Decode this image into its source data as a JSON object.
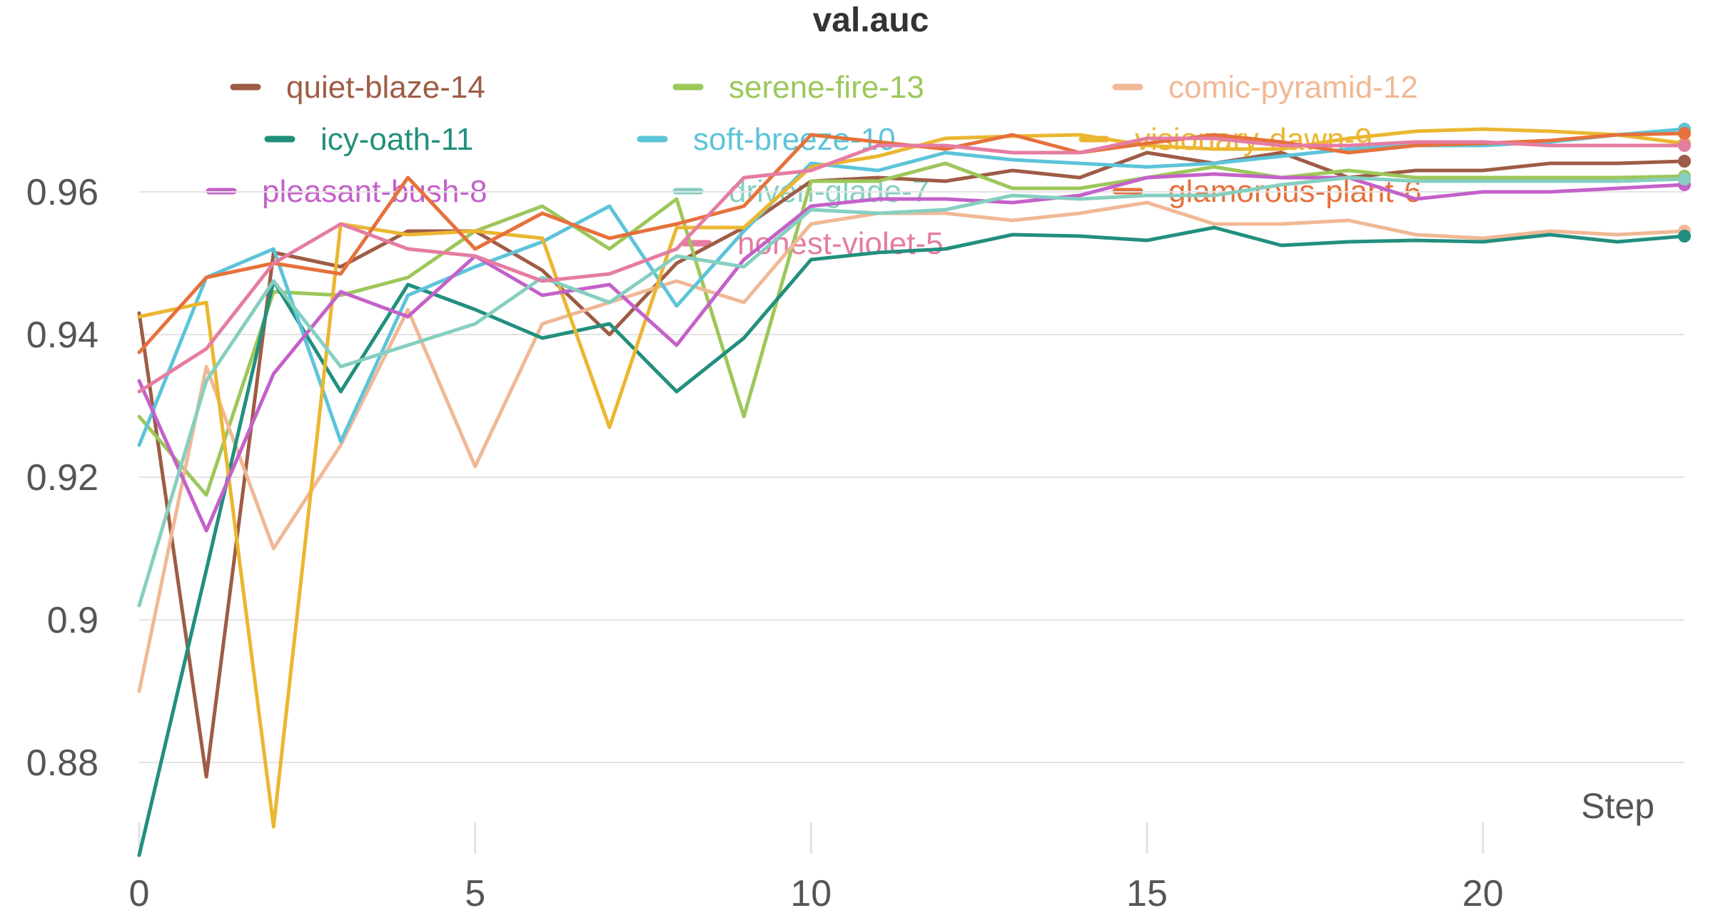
{
  "chart_data": {
    "type": "line",
    "title": "val.auc",
    "xlabel": "Step",
    "ylabel": "",
    "xlim": [
      0,
      23
    ],
    "ylim": [
      0.87,
      0.97
    ],
    "x_ticks": [
      0,
      5,
      10,
      15,
      20
    ],
    "x_tick_labels": [
      "0",
      "5",
      "10",
      "15",
      "20"
    ],
    "y_ticks": [
      0.88,
      0.9,
      0.92,
      0.94,
      0.96
    ],
    "y_tick_labels": [
      "0.88",
      "0.9",
      "0.92",
      "0.94",
      "0.96"
    ],
    "grid": true,
    "legend_position": "top",
    "x": [
      0,
      1,
      2,
      3,
      4,
      5,
      6,
      7,
      8,
      9,
      10,
      11,
      12,
      13,
      14,
      15,
      16,
      17,
      18,
      19,
      20,
      21,
      22,
      23
    ],
    "series": [
      {
        "name": "quiet-blaze-14",
        "color": "#9e5c45",
        "values": [
          0.943,
          0.878,
          0.9515,
          0.9495,
          0.9545,
          0.9545,
          0.949,
          0.94,
          0.95,
          0.955,
          0.9615,
          0.962,
          0.9615,
          0.963,
          0.962,
          0.9655,
          0.964,
          0.9655,
          0.962,
          0.963,
          0.963,
          0.964,
          0.964,
          0.9643
        ]
      },
      {
        "name": "serene-fire-13",
        "color": "#9cc75a",
        "values": [
          0.9285,
          0.9175,
          0.946,
          0.9455,
          0.948,
          0.9545,
          0.958,
          0.952,
          0.959,
          0.9285,
          0.9615,
          0.9615,
          0.964,
          0.9605,
          0.9605,
          0.962,
          0.9635,
          0.962,
          0.963,
          0.962,
          0.962,
          0.962,
          0.962,
          0.9622
        ]
      },
      {
        "name": "comic-pyramid-12",
        "color": "#f0b895",
        "values": [
          0.89,
          0.9355,
          0.91,
          0.9245,
          0.9435,
          0.9215,
          0.9415,
          0.9445,
          0.9475,
          0.9445,
          0.9555,
          0.957,
          0.957,
          0.956,
          0.957,
          0.9585,
          0.9555,
          0.9555,
          0.956,
          0.954,
          0.9535,
          0.9545,
          0.954,
          0.9545
        ]
      },
      {
        "name": "icy-oath-11",
        "color": "#228f7e",
        "values": [
          0.867,
          0.907,
          0.9475,
          0.932,
          0.947,
          0.9435,
          0.9395,
          0.9415,
          0.932,
          0.9395,
          0.9505,
          0.9515,
          0.952,
          0.954,
          0.9538,
          0.9532,
          0.955,
          0.9525,
          0.953,
          0.9532,
          0.953,
          0.954,
          0.953,
          0.9538
        ]
      },
      {
        "name": "soft-breeze-10",
        "color": "#5cc4d9",
        "values": [
          0.9245,
          0.948,
          0.952,
          0.925,
          0.9455,
          0.9495,
          0.953,
          0.958,
          0.944,
          0.9545,
          0.964,
          0.963,
          0.9655,
          0.9645,
          0.964,
          0.9635,
          0.964,
          0.965,
          0.966,
          0.9665,
          0.9665,
          0.967,
          0.968,
          0.9688
        ]
      },
      {
        "name": "visionary-dawn-9",
        "color": "#ebb630",
        "values": [
          0.9425,
          0.9445,
          0.871,
          0.9555,
          0.954,
          0.9545,
          0.9535,
          0.927,
          0.955,
          0.955,
          0.9635,
          0.965,
          0.9675,
          0.9678,
          0.968,
          0.9665,
          0.966,
          0.966,
          0.9675,
          0.9685,
          0.9688,
          0.9685,
          0.968,
          0.9668
        ]
      },
      {
        "name": "pleasant-bush-8",
        "color": "#c461c9",
        "values": [
          0.9335,
          0.9125,
          0.9345,
          0.946,
          0.9425,
          0.951,
          0.9455,
          0.947,
          0.9385,
          0.9505,
          0.958,
          0.959,
          0.959,
          0.9585,
          0.9595,
          0.962,
          0.9625,
          0.962,
          0.962,
          0.959,
          0.96,
          0.96,
          0.9605,
          0.961
        ]
      },
      {
        "name": "driven-glade-7",
        "color": "#85cfc0",
        "values": [
          0.902,
          0.9335,
          0.9475,
          0.9355,
          0.9385,
          0.9415,
          0.948,
          0.9445,
          0.951,
          0.9495,
          0.9575,
          0.957,
          0.9575,
          0.9595,
          0.959,
          0.9595,
          0.9595,
          0.961,
          0.962,
          0.9615,
          0.9615,
          0.9615,
          0.9615,
          0.9618
        ]
      },
      {
        "name": "glamorous-plant-6",
        "color": "#e6713c",
        "values": [
          0.9375,
          0.948,
          0.95,
          0.9485,
          0.962,
          0.952,
          0.957,
          0.9535,
          0.9555,
          0.958,
          0.968,
          0.967,
          0.966,
          0.968,
          0.9655,
          0.9668,
          0.968,
          0.967,
          0.9655,
          0.9665,
          0.9668,
          0.9672,
          0.968,
          0.9682
        ]
      },
      {
        "name": "honest-violet-5",
        "color": "#e57ca2",
        "values": [
          0.932,
          0.938,
          0.95,
          0.9555,
          0.952,
          0.951,
          0.9475,
          0.9485,
          0.952,
          0.962,
          0.963,
          0.9665,
          0.9665,
          0.9655,
          0.9655,
          0.9675,
          0.9675,
          0.9665,
          0.9665,
          0.967,
          0.967,
          0.9665,
          0.9665,
          0.9665
        ]
      }
    ]
  }
}
